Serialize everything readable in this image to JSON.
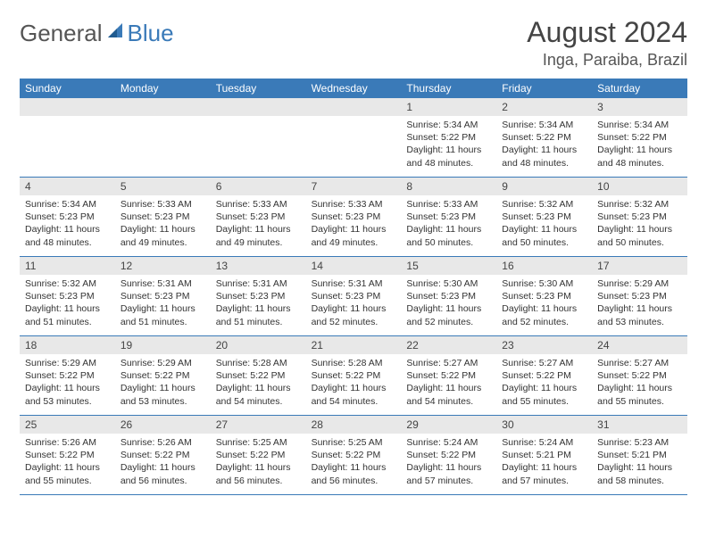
{
  "logo": {
    "general": "General",
    "blue": "Blue"
  },
  "title": "August 2024",
  "location": "Inga, Paraiba, Brazil",
  "colors": {
    "header_bg": "#3a7ab8",
    "daynum_bg": "#e8e8e8",
    "border": "#3a7ab8"
  },
  "weekdays": [
    "Sunday",
    "Monday",
    "Tuesday",
    "Wednesday",
    "Thursday",
    "Friday",
    "Saturday"
  ],
  "weeks": [
    [
      null,
      null,
      null,
      null,
      {
        "n": "1",
        "sr": "5:34 AM",
        "ss": "5:22 PM",
        "dl": "11 hours and 48 minutes."
      },
      {
        "n": "2",
        "sr": "5:34 AM",
        "ss": "5:22 PM",
        "dl": "11 hours and 48 minutes."
      },
      {
        "n": "3",
        "sr": "5:34 AM",
        "ss": "5:22 PM",
        "dl": "11 hours and 48 minutes."
      }
    ],
    [
      {
        "n": "4",
        "sr": "5:34 AM",
        "ss": "5:23 PM",
        "dl": "11 hours and 48 minutes."
      },
      {
        "n": "5",
        "sr": "5:33 AM",
        "ss": "5:23 PM",
        "dl": "11 hours and 49 minutes."
      },
      {
        "n": "6",
        "sr": "5:33 AM",
        "ss": "5:23 PM",
        "dl": "11 hours and 49 minutes."
      },
      {
        "n": "7",
        "sr": "5:33 AM",
        "ss": "5:23 PM",
        "dl": "11 hours and 49 minutes."
      },
      {
        "n": "8",
        "sr": "5:33 AM",
        "ss": "5:23 PM",
        "dl": "11 hours and 50 minutes."
      },
      {
        "n": "9",
        "sr": "5:32 AM",
        "ss": "5:23 PM",
        "dl": "11 hours and 50 minutes."
      },
      {
        "n": "10",
        "sr": "5:32 AM",
        "ss": "5:23 PM",
        "dl": "11 hours and 50 minutes."
      }
    ],
    [
      {
        "n": "11",
        "sr": "5:32 AM",
        "ss": "5:23 PM",
        "dl": "11 hours and 51 minutes."
      },
      {
        "n": "12",
        "sr": "5:31 AM",
        "ss": "5:23 PM",
        "dl": "11 hours and 51 minutes."
      },
      {
        "n": "13",
        "sr": "5:31 AM",
        "ss": "5:23 PM",
        "dl": "11 hours and 51 minutes."
      },
      {
        "n": "14",
        "sr": "5:31 AM",
        "ss": "5:23 PM",
        "dl": "11 hours and 52 minutes."
      },
      {
        "n": "15",
        "sr": "5:30 AM",
        "ss": "5:23 PM",
        "dl": "11 hours and 52 minutes."
      },
      {
        "n": "16",
        "sr": "5:30 AM",
        "ss": "5:23 PM",
        "dl": "11 hours and 52 minutes."
      },
      {
        "n": "17",
        "sr": "5:29 AM",
        "ss": "5:23 PM",
        "dl": "11 hours and 53 minutes."
      }
    ],
    [
      {
        "n": "18",
        "sr": "5:29 AM",
        "ss": "5:22 PM",
        "dl": "11 hours and 53 minutes."
      },
      {
        "n": "19",
        "sr": "5:29 AM",
        "ss": "5:22 PM",
        "dl": "11 hours and 53 minutes."
      },
      {
        "n": "20",
        "sr": "5:28 AM",
        "ss": "5:22 PM",
        "dl": "11 hours and 54 minutes."
      },
      {
        "n": "21",
        "sr": "5:28 AM",
        "ss": "5:22 PM",
        "dl": "11 hours and 54 minutes."
      },
      {
        "n": "22",
        "sr": "5:27 AM",
        "ss": "5:22 PM",
        "dl": "11 hours and 54 minutes."
      },
      {
        "n": "23",
        "sr": "5:27 AM",
        "ss": "5:22 PM",
        "dl": "11 hours and 55 minutes."
      },
      {
        "n": "24",
        "sr": "5:27 AM",
        "ss": "5:22 PM",
        "dl": "11 hours and 55 minutes."
      }
    ],
    [
      {
        "n": "25",
        "sr": "5:26 AM",
        "ss": "5:22 PM",
        "dl": "11 hours and 55 minutes."
      },
      {
        "n": "26",
        "sr": "5:26 AM",
        "ss": "5:22 PM",
        "dl": "11 hours and 56 minutes."
      },
      {
        "n": "27",
        "sr": "5:25 AM",
        "ss": "5:22 PM",
        "dl": "11 hours and 56 minutes."
      },
      {
        "n": "28",
        "sr": "5:25 AM",
        "ss": "5:22 PM",
        "dl": "11 hours and 56 minutes."
      },
      {
        "n": "29",
        "sr": "5:24 AM",
        "ss": "5:22 PM",
        "dl": "11 hours and 57 minutes."
      },
      {
        "n": "30",
        "sr": "5:24 AM",
        "ss": "5:21 PM",
        "dl": "11 hours and 57 minutes."
      },
      {
        "n": "31",
        "sr": "5:23 AM",
        "ss": "5:21 PM",
        "dl": "11 hours and 58 minutes."
      }
    ]
  ],
  "labels": {
    "sunrise": "Sunrise:",
    "sunset": "Sunset:",
    "daylight": "Daylight:"
  }
}
